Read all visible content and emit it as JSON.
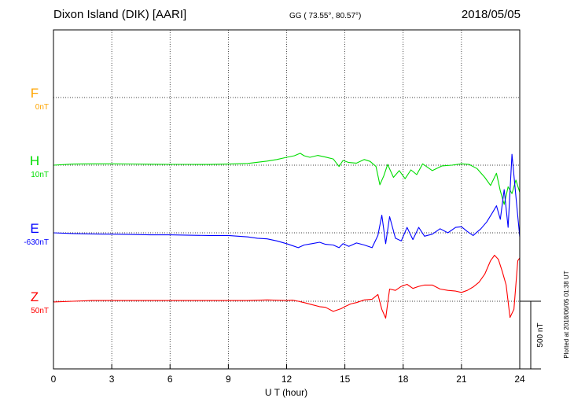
{
  "header": {
    "station": "Dixon Island (DIK)  [AARI]",
    "gg": "GG ( 73.55°,  80.57°)",
    "date": "2018/05/05"
  },
  "side_note": "Plotted at 2018/06/05 01:38 UT",
  "scale_label": "500 nT",
  "colors": {
    "F": "#ffa500",
    "H": "#00dd00",
    "E": "#0000ff",
    "Z": "#ff0000"
  },
  "chart_data": {
    "type": "line",
    "xlabel": "U T (hour)",
    "xlim": [
      0,
      24
    ],
    "xticks": [
      0,
      3,
      6,
      9,
      12,
      15,
      18,
      21,
      24
    ],
    "grid": true,
    "y_scale_bar_nT": 500,
    "components": [
      {
        "name": "F",
        "baseline": "0nT"
      },
      {
        "name": "H",
        "baseline": "10nT"
      },
      {
        "name": "E",
        "baseline": "-630nT"
      },
      {
        "name": "Z",
        "baseline": "50nT"
      }
    ],
    "series": [
      {
        "name": "H",
        "x": [
          0,
          1,
          2,
          3,
          4,
          5,
          6,
          7,
          8,
          9,
          10,
          11,
          11.5,
          12,
          12.4,
          12.7,
          12.9,
          13.2,
          13.6,
          14,
          14.4,
          14.7,
          14.9,
          15.2,
          15.6,
          16,
          16.3,
          16.6,
          16.8,
          17,
          17.2,
          17.5,
          17.8,
          18.1,
          18.4,
          18.7,
          19,
          19.5,
          20,
          20.5,
          21,
          21.4,
          21.8,
          22.2,
          22.5,
          22.8,
          23,
          23.2,
          23.4,
          23.6,
          23.8,
          24
        ],
        "values": [
          0,
          8,
          10,
          10,
          9,
          7,
          6,
          6,
          5,
          8,
          13,
          30,
          42,
          58,
          70,
          88,
          70,
          58,
          72,
          60,
          46,
          -10,
          35,
          20,
          15,
          42,
          28,
          -10,
          -145,
          -80,
          5,
          -90,
          -40,
          -100,
          -35,
          -70,
          10,
          -40,
          -5,
          0,
          10,
          5,
          -25,
          -90,
          -150,
          -60,
          -190,
          -290,
          -160,
          -210,
          -110,
          -200
        ]
      },
      {
        "name": "E",
        "x": [
          0,
          1,
          2,
          3,
          4,
          5,
          6,
          7,
          8,
          9,
          10,
          10.5,
          11,
          11.5,
          12,
          12.3,
          12.6,
          12.9,
          13.3,
          13.7,
          14,
          14.4,
          14.7,
          14.9,
          15.2,
          15.6,
          16,
          16.4,
          16.7,
          16.9,
          17.1,
          17.3,
          17.6,
          17.9,
          18.2,
          18.5,
          18.8,
          19.1,
          19.5,
          19.9,
          20.3,
          20.7,
          21,
          21.3,
          21.6,
          22,
          22.3,
          22.6,
          22.8,
          23,
          23.2,
          23.4,
          23.6,
          23.8,
          24
        ],
        "values": [
          0,
          -5,
          -8,
          -10,
          -12,
          -15,
          -15,
          -18,
          -20,
          -20,
          -30,
          -40,
          -45,
          -60,
          -80,
          -95,
          -110,
          -90,
          -80,
          -70,
          -85,
          -90,
          -110,
          -80,
          -100,
          -75,
          -90,
          -110,
          -20,
          130,
          -80,
          120,
          -40,
          -60,
          40,
          -50,
          40,
          -25,
          -10,
          30,
          0,
          40,
          45,
          10,
          -20,
          30,
          80,
          150,
          200,
          100,
          320,
          40,
          580,
          270,
          -30
        ]
      },
      {
        "name": "Z",
        "x": [
          0,
          1,
          2,
          3,
          4,
          5,
          6,
          7,
          8,
          9,
          10,
          11,
          12,
          12.3,
          12.6,
          12.9,
          13.3,
          13.7,
          14,
          14.4,
          14.8,
          15,
          15.3,
          15.6,
          16,
          16.4,
          16.7,
          16.9,
          17.1,
          17.3,
          17.6,
          17.9,
          18.2,
          18.5,
          18.8,
          19.1,
          19.5,
          19.9,
          20.3,
          20.7,
          21,
          21.3,
          21.6,
          21.9,
          22.2,
          22.5,
          22.7,
          22.9,
          23.1,
          23.3,
          23.5,
          23.7,
          23.9,
          24
        ],
        "values": [
          -5,
          0,
          5,
          5,
          5,
          5,
          5,
          5,
          5,
          5,
          5,
          10,
          5,
          8,
          0,
          -10,
          -25,
          -40,
          -45,
          -75,
          -55,
          -40,
          -20,
          -10,
          10,
          15,
          50,
          -60,
          -125,
          90,
          80,
          110,
          125,
          95,
          110,
          120,
          120,
          90,
          80,
          75,
          65,
          80,
          105,
          140,
          200,
          300,
          340,
          310,
          220,
          120,
          -120,
          -60,
          300,
          320
        ]
      }
    ]
  }
}
